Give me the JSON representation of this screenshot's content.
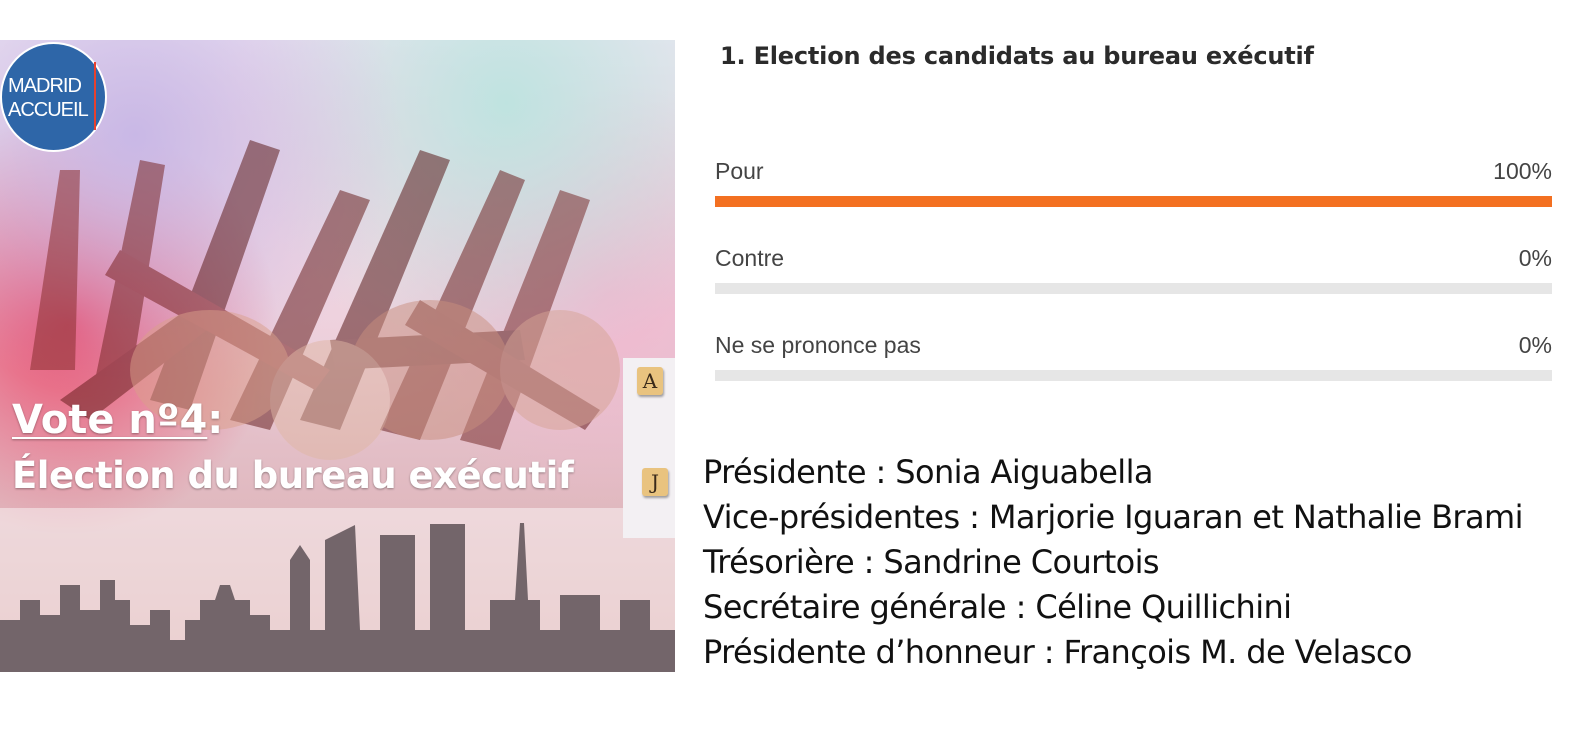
{
  "hero": {
    "logo_line1": "MADRID",
    "logo_line2": "ACCUEIL",
    "vote_label": "Vote nº4",
    "vote_colon": ":",
    "vote_subtitle": "Élection du bureau exécutif",
    "tile_1": "A",
    "tile_2": "J"
  },
  "poll": {
    "title": "1. Election des candidats au bureau exécutif",
    "options": [
      {
        "label": "Pour",
        "percent_text": "100%",
        "fraction": 1.0
      },
      {
        "label": "Contre",
        "percent_text": "0%",
        "fraction": 0.0
      },
      {
        "label": "Ne se prononce pas",
        "percent_text": "0%",
        "fraction": 0.0
      }
    ],
    "bar_color": "#f37021",
    "track_color": "#e6e6e6"
  },
  "results": [
    "Présidente : Sonia Aiguabella",
    "Vice-présidentes : Marjorie Iguaran et Nathalie Brami",
    "Trésorière : Sandrine Courtois",
    "Secrétaire générale : Céline Quillichini",
    "Présidente d’honneur : François M. de Velasco"
  ]
}
